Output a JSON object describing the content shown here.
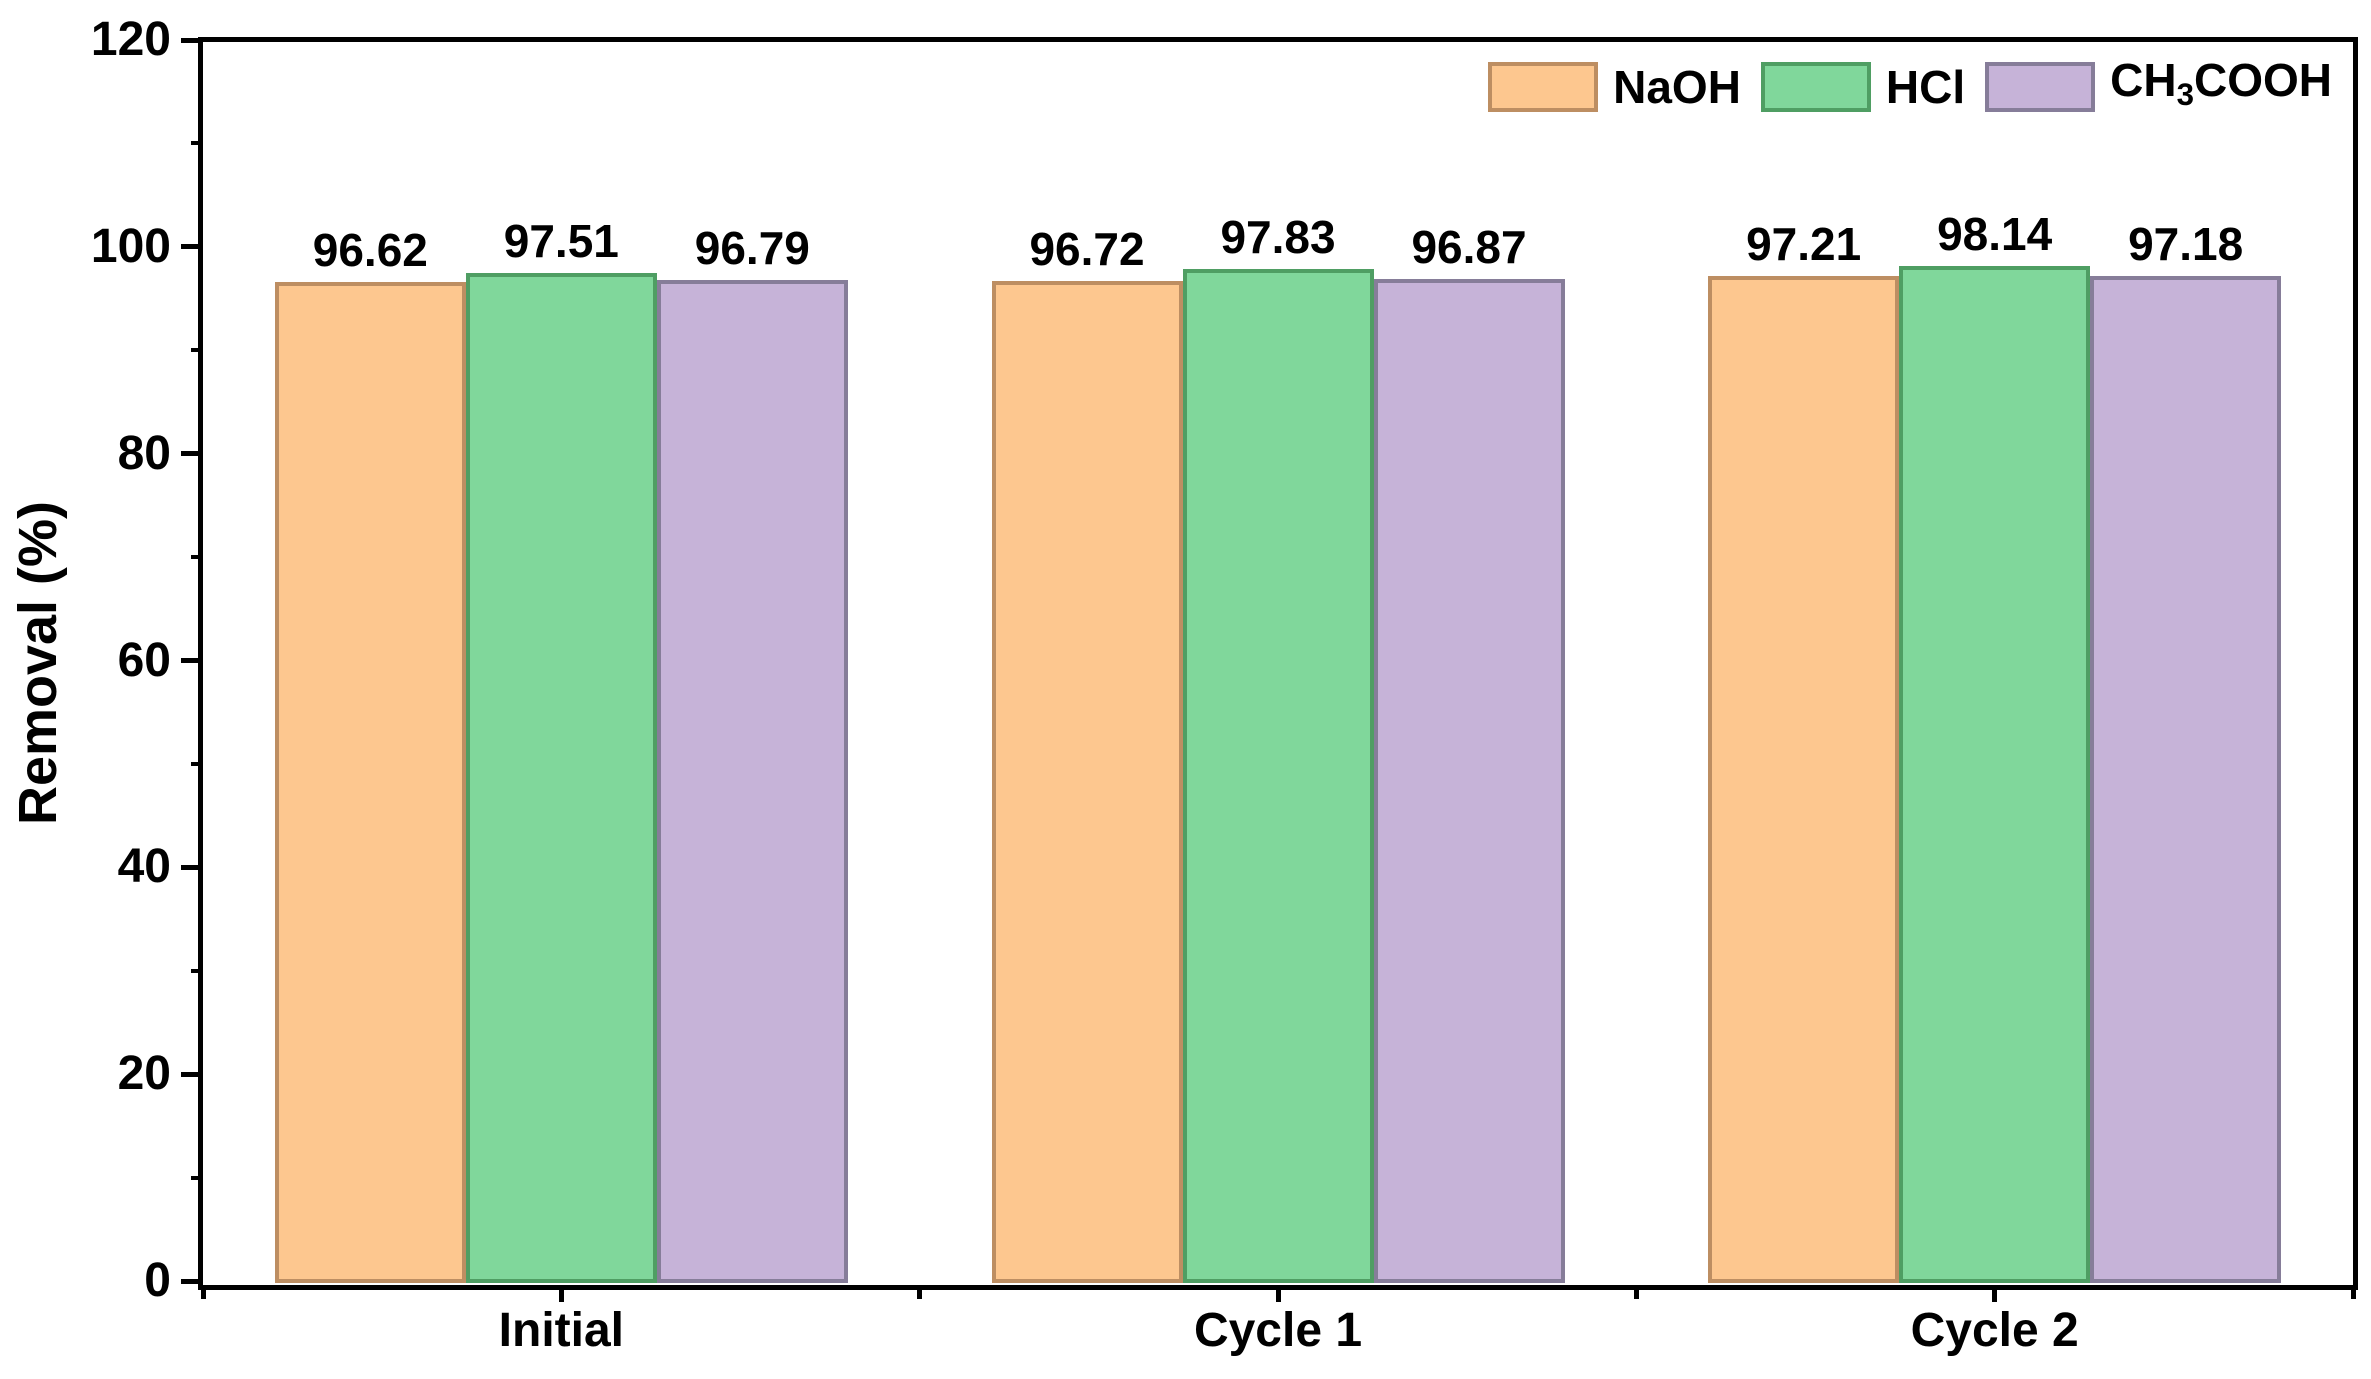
{
  "chart_data": {
    "type": "bar",
    "title": "",
    "xlabel": "",
    "ylabel": "Removal (%)",
    "ylim": [
      0,
      120
    ],
    "y_major_step": 20,
    "y_minor_step": 10,
    "y_tick_labels": [
      "0",
      "20",
      "40",
      "60",
      "80",
      "100",
      "120"
    ],
    "grid": false,
    "legend_position": "top-right",
    "bar_value_labels": true,
    "categories": [
      "Initial",
      "Cycle 1",
      "Cycle 2"
    ],
    "series": [
      {
        "name": "NaOH",
        "name_runs": [
          {
            "text": "NaOH"
          }
        ],
        "fill": "#FDC78F",
        "stroke": "#BD8E62",
        "values": [
          96.62,
          96.72,
          97.21
        ],
        "value_labels": [
          "96.62",
          "96.72",
          "97.21"
        ]
      },
      {
        "name": "HCl",
        "name_runs": [
          {
            "text": "HCl"
          }
        ],
        "fill": "#80D79B",
        "stroke": "#4F9E63",
        "values": [
          97.51,
          97.83,
          98.14
        ],
        "value_labels": [
          "97.51",
          "97.83",
          "98.14"
        ]
      },
      {
        "name": "CH3COOH",
        "name_runs": [
          {
            "text": "CH"
          },
          {
            "text": "3",
            "sub": true
          },
          {
            "text": "COOH"
          }
        ],
        "fill": "#C6B3D8",
        "stroke": "#867D99",
        "values": [
          96.79,
          96.87,
          97.18
        ],
        "value_labels": [
          "96.79",
          "96.87",
          "97.18"
        ]
      }
    ]
  }
}
